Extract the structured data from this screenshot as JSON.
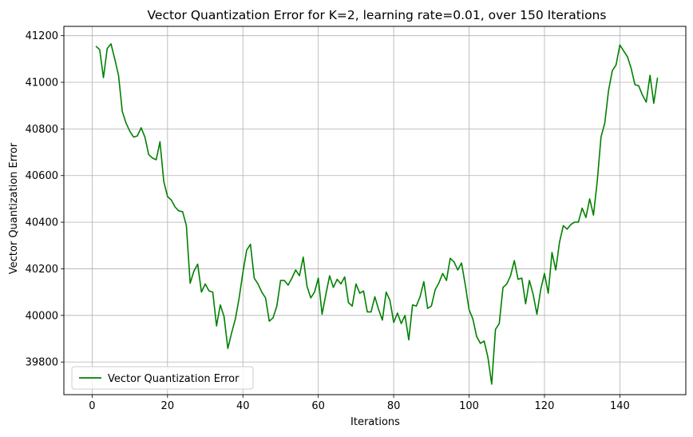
{
  "chart_data": {
    "type": "line",
    "title": "Vector Quantization Error for K=2, learning rate=0.01, over 150 Iterations",
    "xlabel": "Iterations",
    "ylabel": "Vector Quantization Error",
    "xlim": [
      -7.5,
      157.5
    ],
    "ylim": [
      39660,
      41240
    ],
    "xticks": [
      0,
      20,
      40,
      60,
      80,
      100,
      120,
      140
    ],
    "yticks": [
      39800,
      40000,
      40200,
      40400,
      40600,
      40800,
      41000,
      41200
    ],
    "grid": true,
    "legend_position": "lower-left",
    "series": [
      {
        "name": "Vector Quantization Error",
        "color": "#008000",
        "x": [
          1,
          2,
          3,
          4,
          5,
          6,
          7,
          8,
          9,
          10,
          11,
          12,
          13,
          14,
          15,
          16,
          17,
          18,
          19,
          20,
          21,
          22,
          23,
          24,
          25,
          26,
          27,
          28,
          29,
          30,
          31,
          32,
          33,
          34,
          35,
          36,
          37,
          38,
          39,
          40,
          41,
          42,
          43,
          44,
          45,
          46,
          47,
          48,
          49,
          50,
          51,
          52,
          53,
          54,
          55,
          56,
          57,
          58,
          59,
          60,
          61,
          62,
          63,
          64,
          65,
          66,
          67,
          68,
          69,
          70,
          71,
          72,
          73,
          74,
          75,
          76,
          77,
          78,
          79,
          80,
          81,
          82,
          83,
          84,
          85,
          86,
          87,
          88,
          89,
          90,
          91,
          92,
          93,
          94,
          95,
          96,
          97,
          98,
          99,
          100,
          101,
          102,
          103,
          104,
          105,
          106,
          107,
          108,
          109,
          110,
          111,
          112,
          113,
          114,
          115,
          116,
          117,
          118,
          119,
          120,
          121,
          122,
          123,
          124,
          125,
          126,
          127,
          128,
          129,
          130,
          131,
          132,
          133,
          134,
          135,
          136,
          137,
          138,
          139,
          140,
          141,
          142,
          143,
          144,
          145,
          146,
          147,
          148,
          149,
          150
        ],
        "y": [
          41155,
          41140,
          41020,
          41145,
          41165,
          41100,
          41030,
          40875,
          40825,
          40790,
          40765,
          40770,
          40805,
          40765,
          40690,
          40675,
          40668,
          40745,
          40575,
          40510,
          40495,
          40465,
          40448,
          40445,
          40385,
          40138,
          40190,
          40220,
          40100,
          40135,
          40105,
          40100,
          39955,
          40045,
          39995,
          39858,
          39925,
          39985,
          40075,
          40185,
          40280,
          40305,
          40160,
          40135,
          40100,
          40075,
          39975,
          39990,
          40040,
          40150,
          40150,
          40130,
          40160,
          40195,
          40170,
          40250,
          40125,
          40075,
          40100,
          40160,
          40005,
          40090,
          40170,
          40120,
          40155,
          40135,
          40165,
          40055,
          40040,
          40135,
          40095,
          40105,
          40015,
          40015,
          40080,
          40025,
          39980,
          40100,
          40065,
          39970,
          40010,
          39965,
          40000,
          39895,
          40045,
          40040,
          40080,
          40145,
          40030,
          40040,
          40110,
          40140,
          40180,
          40150,
          40245,
          40230,
          40195,
          40225,
          40130,
          40025,
          39985,
          39910,
          39880,
          39890,
          39820,
          39705,
          39940,
          39965,
          40120,
          40135,
          40170,
          40235,
          40155,
          40160,
          40050,
          40150,
          40090,
          40005,
          40110,
          40180,
          40095,
          40270,
          40195,
          40315,
          40385,
          40370,
          40390,
          40400,
          40400,
          40460,
          40420,
          40500,
          40430,
          40575,
          40765,
          40825,
          40965,
          41050,
          41075,
          41160,
          41135,
          41110,
          41060,
          40990,
          40985,
          40945,
          40915,
          41030,
          40910,
          41020
        ]
      }
    ]
  }
}
